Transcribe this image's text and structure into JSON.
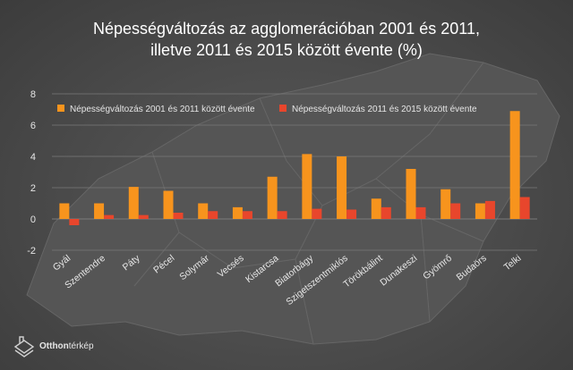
{
  "title": {
    "line1": "Népességváltozás az agglomerációban 2001 és 2011,",
    "line2": "illetve 2011 és 2015 között évente (%)"
  },
  "brand": {
    "bold": "Otthon",
    "light": "térkép"
  },
  "colors": {
    "series1": "#f7941d",
    "series2": "#e8462c",
    "grid": "#7a7a7a",
    "text": "#e6e6e6"
  },
  "chart_data": {
    "type": "bar",
    "categories": [
      "Gyál",
      "Szentendre",
      "Páty",
      "Pécel",
      "Solymár",
      "Vecsés",
      "Kistarcsa",
      "Biatorbágy",
      "Szigetszentmiklós",
      "Törökbálint",
      "Dunakeszi",
      "Gyömrő",
      "Budaörs",
      "Telki"
    ],
    "series": [
      {
        "name": "Népességváltozás 2001 és 2011 között évente",
        "values": [
          1.0,
          1.0,
          2.05,
          1.8,
          1.0,
          0.75,
          2.7,
          4.15,
          4.0,
          1.3,
          3.2,
          1.9,
          1.0,
          6.9
        ]
      },
      {
        "name": "Népességváltozás 2011 és 2015 között évente",
        "values": [
          -0.4,
          0.25,
          0.25,
          0.4,
          0.5,
          0.5,
          0.5,
          0.65,
          0.6,
          0.75,
          0.75,
          1.0,
          1.15,
          1.4
        ]
      }
    ],
    "yticks": [
      "-2",
      "0",
      "2",
      "4",
      "6",
      "8"
    ],
    "ylim": [
      -2,
      8
    ],
    "grid": true,
    "legend": "top"
  }
}
